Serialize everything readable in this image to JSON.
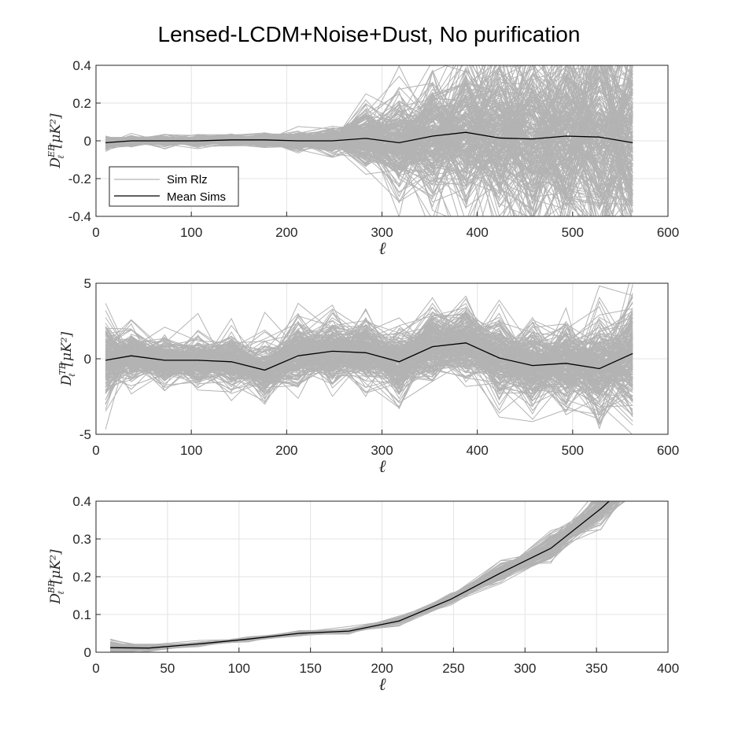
{
  "figure": {
    "title": "Lensed-LCDM+Noise+Dust, No purification"
  },
  "legend": {
    "sim_label": "Sim Rlz",
    "mean_label": "Mean Sims"
  },
  "colors": {
    "sims": "#b3b3b3",
    "mean": "#000000",
    "grid": "#e3e3e3",
    "axis": "#262626"
  },
  "chart_data": [
    {
      "type": "line",
      "id": "eb",
      "xlabel": "ℓ",
      "ylabel_main": "D",
      "ylabel_sub": "ℓ",
      "ylabel_sup": "EB",
      "ylabel_units": "[μK²]",
      "xlim": [
        0,
        600
      ],
      "ylim": [
        -0.4,
        0.4
      ],
      "xticks": [
        0,
        100,
        200,
        300,
        400,
        500,
        600
      ],
      "xtick_labels": [
        "0",
        "100",
        "200",
        "300",
        "400",
        "500",
        "600"
      ],
      "yticks": [
        -0.4,
        -0.2,
        0,
        0.2,
        0.4
      ],
      "ytick_labels": [
        "-0.4",
        "-0.2",
        "0",
        "0.2",
        "0.4"
      ],
      "grid": true,
      "legend_position": "bottom-left",
      "x": [
        10,
        37,
        72,
        107,
        142,
        177,
        212,
        248,
        283,
        318,
        353,
        388,
        423,
        458,
        493,
        528,
        563
      ],
      "mean": [
        -0.01,
        0.0,
        0.0,
        0.0,
        0.005,
        0.005,
        0.0,
        0.0,
        0.013,
        -0.01,
        0.025,
        0.045,
        0.015,
        0.01,
        0.025,
        0.02,
        -0.01
      ],
      "spread": [
        0.025,
        0.02,
        0.022,
        0.024,
        0.026,
        0.03,
        0.035,
        0.055,
        0.14,
        0.22,
        0.3,
        0.4,
        0.45,
        0.5,
        0.52,
        0.55,
        0.6
      ],
      "sim_count": 240
    },
    {
      "type": "line",
      "id": "tb",
      "xlabel": "ℓ",
      "ylabel_main": "D",
      "ylabel_sub": "ℓ",
      "ylabel_sup": "TB",
      "ylabel_units": "[μK²]",
      "xlim": [
        0,
        600
      ],
      "ylim": [
        -5,
        5
      ],
      "xticks": [
        0,
        100,
        200,
        300,
        400,
        500,
        600
      ],
      "xtick_labels": [
        "0",
        "100",
        "200",
        "300",
        "400",
        "500",
        "600"
      ],
      "yticks": [
        -5,
        0,
        5
      ],
      "ytick_labels": [
        "-5",
        "0",
        "5"
      ],
      "grid": true,
      "x": [
        10,
        37,
        72,
        107,
        142,
        177,
        212,
        248,
        283,
        318,
        353,
        388,
        423,
        458,
        493,
        528,
        563
      ],
      "mean": [
        -0.1,
        0.2,
        -0.1,
        -0.1,
        -0.2,
        -0.75,
        0.2,
        0.5,
        0.4,
        -0.2,
        0.8,
        1.05,
        0.05,
        -0.45,
        -0.3,
        -0.65,
        0.35
      ],
      "spread": [
        2.4,
        1.6,
        1.4,
        1.4,
        1.5,
        1.6,
        1.9,
        2.0,
        2.0,
        2.0,
        2.1,
        2.2,
        2.4,
        2.6,
        2.8,
        3.0,
        3.6
      ],
      "sim_count": 240
    },
    {
      "type": "line",
      "id": "bb",
      "xlabel": "ℓ",
      "ylabel_main": "D",
      "ylabel_sub": "ℓ",
      "ylabel_sup": "BB",
      "ylabel_units": "[μK²]",
      "xlim": [
        0,
        400
      ],
      "ylim": [
        0,
        0.4
      ],
      "xticks": [
        0,
        50,
        100,
        150,
        200,
        250,
        300,
        350,
        400
      ],
      "xtick_labels": [
        "0",
        "50",
        "100",
        "150",
        "200",
        "250",
        "300",
        "350",
        "400"
      ],
      "yticks": [
        0,
        0.1,
        0.2,
        0.3,
        0.4
      ],
      "ytick_labels": [
        "0",
        "0.1",
        "0.2",
        "0.3",
        "0.4"
      ],
      "grid": true,
      "x": [
        10,
        37,
        72,
        107,
        142,
        177,
        212,
        248,
        283,
        318,
        353,
        388
      ],
      "mean": [
        0.012,
        0.011,
        0.022,
        0.035,
        0.05,
        0.056,
        0.083,
        0.14,
        0.21,
        0.275,
        0.38,
        0.5
      ],
      "spread": [
        0.02,
        0.008,
        0.006,
        0.005,
        0.006,
        0.006,
        0.008,
        0.012,
        0.02,
        0.03,
        0.035,
        0.04
      ],
      "sim_count": 160
    }
  ]
}
